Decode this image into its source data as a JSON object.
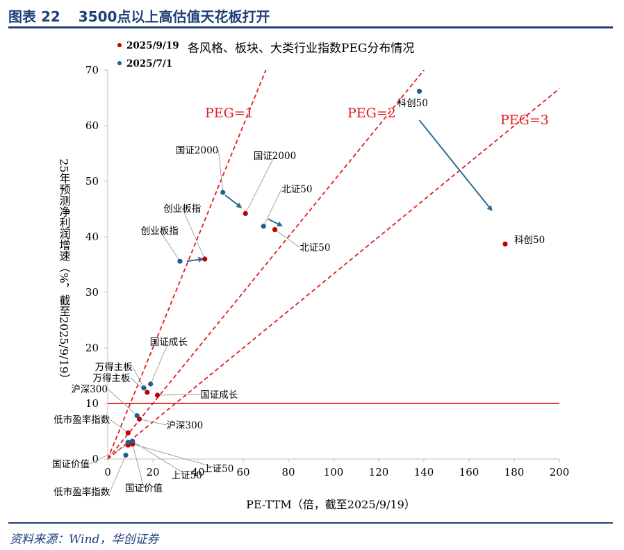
{
  "figure": {
    "number": "图表 22",
    "title": "3500点以上高估值天花板打开",
    "source": "资料来源：Wind，华创证券"
  },
  "colors": {
    "brand": "#1f3f7a",
    "series_0919": "#c00000",
    "series_0701": "#1f5f8b",
    "guide": "#e41a1c",
    "arrow": "#2e6c93"
  },
  "chart_data": {
    "type": "scatter",
    "title": "各风格、板块、大类行业指数PEG分布情况",
    "xlabel": "PE-TTM（倍，截至2025/9/19）",
    "ylabel": "25年预测净利润增速（%，截至2025/9/19）",
    "xlim": [
      0,
      200
    ],
    "ylim": [
      0,
      70
    ],
    "xticks": [
      0,
      20,
      40,
      60,
      80,
      100,
      120,
      140,
      160,
      180,
      200
    ],
    "yticks": [
      0,
      10,
      20,
      30,
      40,
      50,
      60,
      70
    ],
    "legend": [
      "2025/9/19",
      "2025/7/1"
    ],
    "series": [
      {
        "name": "2025/9/19",
        "points": [
          {
            "label": "科创50",
            "x": 176,
            "y": 38.7
          },
          {
            "label": "国证2000",
            "x": 61,
            "y": 44.2
          },
          {
            "label": "北证50",
            "x": 74,
            "y": 41.3
          },
          {
            "label": "创业板指",
            "x": 43,
            "y": 36.0
          },
          {
            "label": "国证成长",
            "x": 22,
            "y": 11.5
          },
          {
            "label": "万得主板",
            "x": 17.5,
            "y": 12.0
          },
          {
            "label": "沪深300",
            "x": 14,
            "y": 7.2
          },
          {
            "label": "低市盈率指数",
            "x": 9,
            "y": 4.7
          },
          {
            "label": "国证价值",
            "x": 9,
            "y": 2.5
          },
          {
            "label": "上证50",
            "x": 11,
            "y": 2.7
          }
        ]
      },
      {
        "name": "2025/7/1",
        "points": [
          {
            "label": "科创50",
            "x": 138,
            "y": 66.2
          },
          {
            "label": "国证2000",
            "x": 51,
            "y": 48.0
          },
          {
            "label": "北证50",
            "x": 69,
            "y": 41.9
          },
          {
            "label": "创业板指",
            "x": 32,
            "y": 35.6
          },
          {
            "label": "国证成长",
            "x": 19,
            "y": 13.5
          },
          {
            "label": "万得主板",
            "x": 16,
            "y": 12.8
          },
          {
            "label": "沪深300",
            "x": 13,
            "y": 7.8
          },
          {
            "label": "低市盈率指数",
            "x": 8,
            "y": 0.7
          },
          {
            "label": "国证价值",
            "x": 9,
            "y": 3.0
          },
          {
            "label": "上证50",
            "x": 11,
            "y": 3.2
          }
        ]
      }
    ],
    "reference_lines": [
      {
        "label": "PEG=1",
        "slope": 1
      },
      {
        "label": "PEG=2",
        "slope": 0.5
      },
      {
        "label": "PEG=3",
        "slope": 0.3333
      }
    ],
    "threshold": {
      "y": 10
    },
    "arrows": [
      {
        "from": [
          138,
          61
        ],
        "to": [
          170,
          44.8
        ]
      },
      {
        "from": [
          52,
          47.5
        ],
        "to": [
          59,
          45.3
        ]
      },
      {
        "from": [
          71,
          43.2
        ],
        "to": [
          77,
          42
        ]
      },
      {
        "from": [
          35,
          35.6
        ],
        "to": [
          42,
          36.0
        ]
      }
    ],
    "annotations": [
      {
        "text": "科创50",
        "x": 135,
        "y": 63.5,
        "anchor": "middle"
      },
      {
        "text": "科创50",
        "x": 180,
        "y": 38.9,
        "anchor": "start"
      },
      {
        "text": "国证2000",
        "x": 49,
        "y": 55,
        "anchor": "end",
        "lx": 51,
        "ly": 48
      },
      {
        "text": "国证2000",
        "x": 74,
        "y": 54,
        "anchor": "middle",
        "lx": 61,
        "ly": 44.2
      },
      {
        "text": "北证50",
        "x": 77,
        "y": 48,
        "anchor": "start",
        "lx": 69,
        "ly": 41.9
      },
      {
        "text": "北证50",
        "x": 85,
        "y": 37.5,
        "anchor": "start",
        "lx": 74,
        "ly": 41.3
      },
      {
        "text": "创业板指",
        "x": 33,
        "y": 44.5,
        "anchor": "middle",
        "lx": 43,
        "ly": 36
      },
      {
        "text": "创业板指",
        "x": 23,
        "y": 40.5,
        "anchor": "middle",
        "lx": 32,
        "ly": 35.6
      },
      {
        "text": "国证成长",
        "x": 27,
        "y": 20.5,
        "anchor": "middle",
        "lx": 19,
        "ly": 13.5
      },
      {
        "text": "国证成长",
        "x": 41,
        "y": 11.0,
        "anchor": "start",
        "lx": 22,
        "ly": 11.5
      },
      {
        "text": "万得主板",
        "x": 11,
        "y": 16.0,
        "anchor": "end",
        "lx": 16,
        "ly": 12.8
      },
      {
        "text": "万得主板",
        "x": 10,
        "y": 14.0,
        "anchor": "end",
        "lx": 17.5,
        "ly": 12.0
      },
      {
        "text": "沪深300",
        "x": 0,
        "y": 12.0,
        "anchor": "end",
        "lx": 13,
        "ly": 7.8
      },
      {
        "text": "沪深300",
        "x": 26,
        "y": 5.5,
        "anchor": "start",
        "lx": 14,
        "ly": 7.2
      },
      {
        "text": "低市盈率指数",
        "x": 1,
        "y": 6.5,
        "anchor": "end",
        "lx": 9,
        "ly": 4.7
      },
      {
        "text": "国证价值",
        "x": -8,
        "y": -1.5,
        "anchor": "end",
        "lx": 9,
        "ly": 2.5
      },
      {
        "text": "低市盈率指数",
        "x": 1,
        "y": -6.5,
        "anchor": "end",
        "lx": 8,
        "ly": 0.7
      },
      {
        "text": "国证价值",
        "x": 16,
        "y": -5.8,
        "anchor": "middle",
        "lx": 11,
        "ly": 2.7
      },
      {
        "text": "上证50",
        "x": 35,
        "y": -3.5,
        "anchor": "middle",
        "lx": 11,
        "ly": 3.2
      },
      {
        "text": "上证50",
        "x": 49,
        "y": -2.3,
        "anchor": "middle",
        "lx": 11,
        "ly": 2.7
      }
    ]
  }
}
